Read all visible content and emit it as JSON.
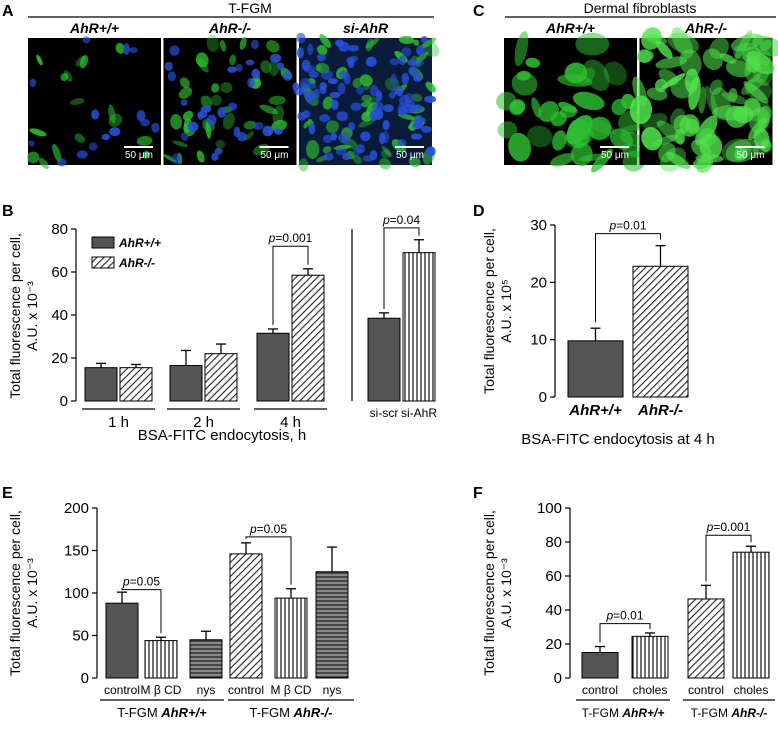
{
  "panel_letters": [
    "A",
    "B",
    "C",
    "D",
    "E",
    "F"
  ],
  "panel_a": {
    "header": "T-FGM",
    "images": [
      {
        "label": "AhR+/+",
        "scalebar": "50 μm",
        "variant": "sparse-green"
      },
      {
        "label": "AhR-/-",
        "scalebar": "50 μm",
        "variant": "dense-green"
      },
      {
        "label": "si-AhR",
        "scalebar": "50 μm",
        "variant": "blue-green"
      }
    ]
  },
  "panel_c": {
    "header": "Dermal fibroblasts",
    "images": [
      {
        "label": "AhR+/+",
        "scalebar": "50 μm",
        "variant": "fibro-dim"
      },
      {
        "label": "AhR-/-",
        "scalebar": "50 μm",
        "variant": "fibro-bright"
      }
    ]
  },
  "chart_data": [
    {
      "id": "B1",
      "type": "bar",
      "ylabel_lines": [
        "Total fluorescence per cell,",
        "A.U. x 10⁻³"
      ],
      "xlabel": "BSA-FITC endocytosis, h",
      "ylim": [
        0,
        80
      ],
      "yticks": [
        0,
        20,
        40,
        60,
        80
      ],
      "groups": [
        "1 h",
        "2 h",
        "4 h"
      ],
      "legend": [
        {
          "name": "AhR+/+",
          "pattern": "solid"
        },
        {
          "name": "AhR-/-",
          "pattern": "diag"
        }
      ],
      "series": [
        {
          "name": "AhR+/+",
          "values": [
            15.5,
            16.5,
            31.5
          ],
          "errors": [
            2,
            7,
            2
          ]
        },
        {
          "name": "AhR-/-",
          "values": [
            15.5,
            22,
            58.5
          ],
          "errors": [
            1.5,
            4.5,
            3
          ]
        }
      ],
      "annotations": [
        {
          "text": "p=0.001",
          "group": 2
        }
      ]
    },
    {
      "id": "B2",
      "type": "bar",
      "ylim": [
        0,
        80
      ],
      "categories": [
        "si-scr",
        "si-AhR"
      ],
      "values": [
        38.5,
        69
      ],
      "errors": [
        2.5,
        6
      ],
      "patterns": [
        "solid",
        "vlines"
      ],
      "annotations": [
        {
          "text": "p=0.04"
        }
      ]
    },
    {
      "id": "D",
      "type": "bar",
      "ylabel_lines": [
        "Total fluorescence per cell,",
        "A.U. x 10⁵"
      ],
      "xlabel": "BSA-FITC endocytosis at 4 h",
      "ylim": [
        0,
        30
      ],
      "yticks": [
        0,
        10,
        20,
        30
      ],
      "categories": [
        "AhR+/+",
        "AhR-/-"
      ],
      "values": [
        9.8,
        22.8
      ],
      "errors": [
        2.2,
        3.6
      ],
      "patterns": [
        "solid",
        "diag"
      ],
      "annotations": [
        {
          "text": "p=0.01"
        }
      ]
    },
    {
      "id": "E",
      "type": "bar",
      "ylabel_lines": [
        "Total fluorescence per cell,",
        "A.U. x 10⁻³"
      ],
      "ylim": [
        0,
        200
      ],
      "yticks": [
        0,
        50,
        100,
        150,
        200
      ],
      "categories": [
        "control",
        "M β CD",
        "nys",
        "control",
        "M β CD",
        "nys"
      ],
      "values": [
        88,
        44,
        45,
        146,
        94,
        125
      ],
      "errors": [
        13,
        4,
        10,
        13,
        11,
        29
      ],
      "patterns": [
        "solid",
        "vlines",
        "hlines",
        "diag",
        "vlines",
        "hlines"
      ],
      "group_labels": [
        {
          "prefix": "T-FGM ",
          "genotype": "AhR+/+"
        },
        {
          "prefix": "T-FGM ",
          "genotype": "AhR-/-"
        }
      ],
      "annotations": [
        {
          "text": "p=0.05"
        },
        {
          "text": "p=0.05"
        }
      ]
    },
    {
      "id": "F",
      "type": "bar",
      "ylabel_lines": [
        "Total fluorescence per cell,",
        "A.U. x 10⁻³"
      ],
      "ylim": [
        0,
        100
      ],
      "yticks": [
        0,
        20,
        40,
        60,
        80,
        100
      ],
      "categories": [
        "control",
        "choles",
        "control",
        "choles"
      ],
      "values": [
        15,
        24.5,
        46.5,
        74
      ],
      "errors": [
        3.5,
        2,
        8,
        3.5
      ],
      "patterns": [
        "solid",
        "vlines",
        "diag",
        "vlines"
      ],
      "group_labels": [
        {
          "prefix": "T-FGM ",
          "genotype": "AhR+/+"
        },
        {
          "prefix": "T-FGM ",
          "genotype": "AhR-/-"
        }
      ],
      "annotations": [
        {
          "text": "p=0.01"
        },
        {
          "text": "p=0.001"
        }
      ]
    }
  ]
}
